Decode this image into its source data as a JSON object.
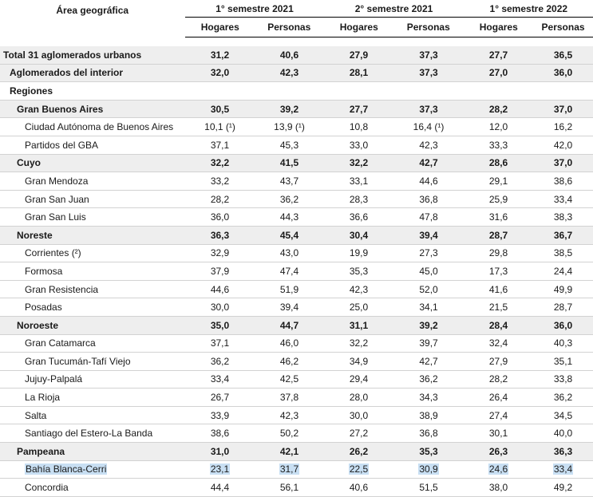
{
  "header": {
    "geo_label": "Área geográfica",
    "semesters": [
      "1° semestre 2021",
      "2° semestre 2021",
      "1° semestre 2022"
    ],
    "sub_labels": [
      "Hogares",
      "Personas",
      "Hogares",
      "Personas",
      "Hogares",
      "Personas"
    ]
  },
  "rows": [
    {
      "label": "Total 31 aglomerados urbanos",
      "values": [
        "31,2",
        "40,6",
        "27,9",
        "37,3",
        "27,7",
        "36,5"
      ]
    },
    {
      "label": "Aglomerados del interior",
      "values": [
        "32,0",
        "42,3",
        "28,1",
        "37,3",
        "27,0",
        "36,0"
      ]
    },
    {
      "label": "Regiones"
    },
    {
      "label": "Gran Buenos Aires",
      "values": [
        "30,5",
        "39,2",
        "27,7",
        "37,3",
        "28,2",
        "37,0"
      ]
    },
    {
      "label": "Ciudad Autónoma de Buenos Aires",
      "values": [
        "10,1 (¹)",
        "13,9 (¹)",
        "10,8",
        "16,4 (¹)",
        "12,0",
        "16,2"
      ]
    },
    {
      "label": "Partidos del GBA",
      "values": [
        "37,1",
        "45,3",
        "33,0",
        "42,3",
        "33,3",
        "42,0"
      ]
    },
    {
      "label": "Cuyo",
      "values": [
        "32,2",
        "41,5",
        "32,2",
        "42,7",
        "28,6",
        "37,0"
      ]
    },
    {
      "label": "Gran Mendoza",
      "values": [
        "33,2",
        "43,7",
        "33,1",
        "44,6",
        "29,1",
        "38,6"
      ]
    },
    {
      "label": "Gran San Juan",
      "values": [
        "28,2",
        "36,2",
        "28,3",
        "36,8",
        "25,9",
        "33,4"
      ]
    },
    {
      "label": "Gran San Luis",
      "values": [
        "36,0",
        "44,3",
        "36,6",
        "47,8",
        "31,6",
        "38,3"
      ]
    },
    {
      "label": "Noreste",
      "values": [
        "36,3",
        "45,4",
        "30,4",
        "39,4",
        "28,7",
        "36,7"
      ]
    },
    {
      "label": "Corrientes (²)",
      "values": [
        "32,9",
        "43,0",
        "19,9",
        "27,3",
        "29,8",
        "38,5"
      ]
    },
    {
      "label": "Formosa",
      "values": [
        "37,9",
        "47,4",
        "35,3",
        "45,0",
        "17,3",
        "24,4"
      ]
    },
    {
      "label": "Gran Resistencia",
      "values": [
        "44,6",
        "51,9",
        "42,3",
        "52,0",
        "41,6",
        "49,9"
      ]
    },
    {
      "label": "Posadas",
      "values": [
        "30,0",
        "39,4",
        "25,0",
        "34,1",
        "21,5",
        "28,7"
      ]
    },
    {
      "label": "Noroeste",
      "values": [
        "35,0",
        "44,7",
        "31,1",
        "39,2",
        "28,4",
        "36,0"
      ]
    },
    {
      "label": "Gran Catamarca",
      "values": [
        "37,1",
        "46,0",
        "32,2",
        "39,7",
        "32,4",
        "40,3"
      ]
    },
    {
      "label": "Gran Tucumán-Tafí Viejo",
      "values": [
        "36,2",
        "46,2",
        "34,9",
        "42,7",
        "27,9",
        "35,1"
      ]
    },
    {
      "label": "Jujuy-Palpalá",
      "values": [
        "33,4",
        "42,5",
        "29,4",
        "36,2",
        "28,2",
        "33,8"
      ]
    },
    {
      "label": "La Rioja",
      "values": [
        "26,7",
        "37,8",
        "28,0",
        "34,3",
        "26,4",
        "36,2"
      ]
    },
    {
      "label": "Salta",
      "values": [
        "33,9",
        "42,3",
        "30,0",
        "38,9",
        "27,4",
        "34,5"
      ]
    },
    {
      "label": "Santiago del Estero-La Banda",
      "values": [
        "38,6",
        "50,2",
        "27,2",
        "36,8",
        "30,1",
        "40,0"
      ]
    },
    {
      "label": "Pampeana",
      "values": [
        "31,0",
        "42,1",
        "26,2",
        "35,3",
        "26,3",
        "36,3"
      ]
    },
    {
      "label": "Bahía Blanca-Cerri",
      "values": [
        "23,1",
        "31,7",
        "22,5",
        "30,9",
        "24,6",
        "33,4"
      ]
    },
    {
      "label": "Concordia",
      "values": [
        "44,4",
        "56,1",
        "40,6",
        "51,5",
        "38,0",
        "49,2"
      ]
    }
  ],
  "colors": {
    "row_shade": "#eeeeee",
    "selection": "#c8dff3",
    "rule": "#d2d2d2"
  }
}
